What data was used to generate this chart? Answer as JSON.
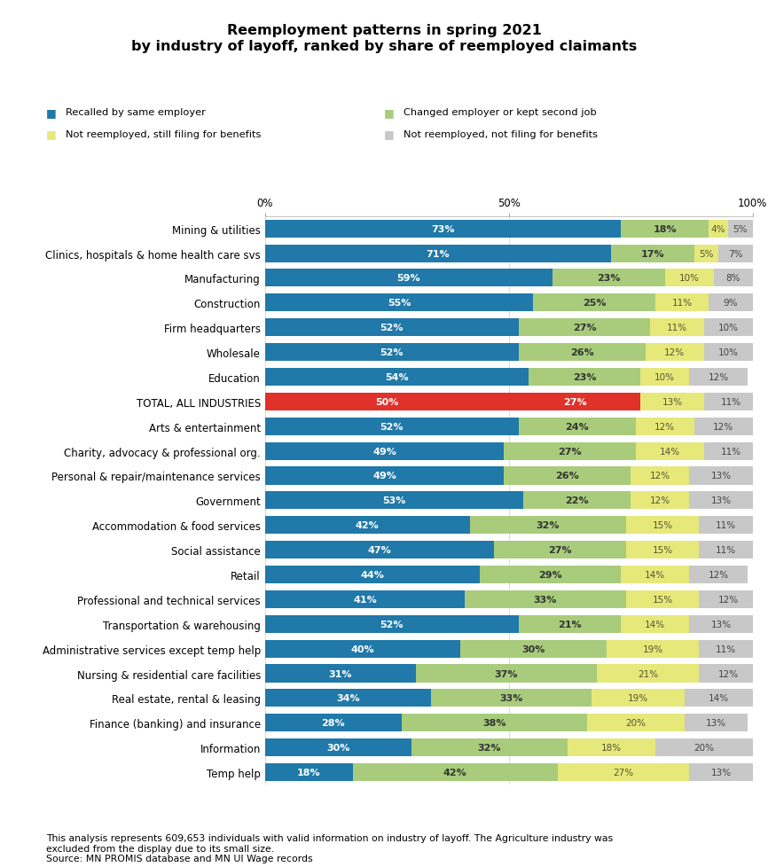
{
  "title": "Reemployment patterns in spring 2021\nby industry of layoff, ranked by share of reemployed claimants",
  "categories": [
    "Mining & utilities",
    "Clinics, hospitals & home health care svs",
    "Manufacturing",
    "Construction",
    "Firm headquarters",
    "Wholesale",
    "Education",
    "TOTAL, ALL INDUSTRIES",
    "Arts & entertainment",
    "Charity, advocacy & professional org.",
    "Personal & repair/maintenance services",
    "Government",
    "Accommodation & food services",
    "Social assistance",
    "Retail",
    "Professional and technical services",
    "Transportation & warehousing",
    "Administrative services except temp help",
    "Nursing & residential care facilities",
    "Real estate, rental & leasing",
    "Finance (banking) and insurance",
    "Information",
    "Temp help"
  ],
  "recalled": [
    73,
    71,
    59,
    55,
    52,
    52,
    54,
    50,
    52,
    49,
    49,
    53,
    42,
    47,
    44,
    41,
    52,
    40,
    31,
    34,
    28,
    30,
    18
  ],
  "changed": [
    18,
    17,
    23,
    25,
    27,
    26,
    23,
    27,
    24,
    27,
    26,
    22,
    32,
    27,
    29,
    33,
    21,
    30,
    37,
    33,
    38,
    32,
    42
  ],
  "still_filing": [
    4,
    5,
    10,
    11,
    11,
    12,
    10,
    13,
    12,
    14,
    12,
    12,
    15,
    15,
    14,
    15,
    14,
    19,
    21,
    19,
    20,
    18,
    27
  ],
  "not_filing": [
    5,
    7,
    8,
    9,
    10,
    10,
    12,
    11,
    12,
    11,
    13,
    13,
    11,
    11,
    12,
    12,
    13,
    11,
    12,
    14,
    13,
    20,
    13
  ],
  "recalled_color_default": "#2079a8",
  "recalled_color_total": "#e0312a",
  "changed_color_default": "#a8cc7c",
  "changed_color_total": "#e0312a",
  "still_filing_color": "#e6e87a",
  "not_filing_color": "#c8c8c8",
  "total_row_index": 7,
  "legend_labels": [
    "Recalled by same employer",
    "Changed employer or kept second job",
    "Not reemployed, still filing for benefits",
    "Not reemployed, not filing for benefits"
  ],
  "footnote": "This analysis represents 609,653 individuals with valid information on industry of layoff. The Agriculture industry was\nexcluded from the display due to its small size.\nSource: MN PROMIS database and MN UI Wage records",
  "xlabel_ticks": [
    "0%",
    "50%",
    "100%"
  ],
  "xlabel_vals": [
    0,
    50,
    100
  ]
}
